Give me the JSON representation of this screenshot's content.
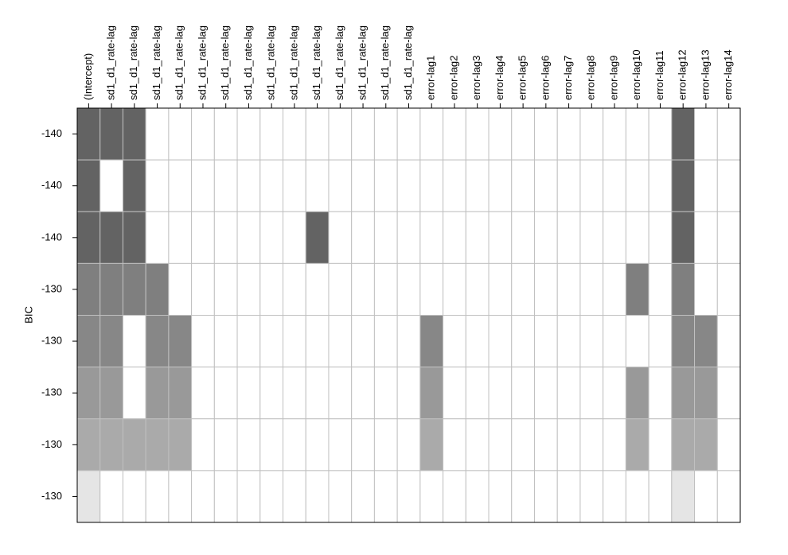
{
  "chart_data": {
    "type": "heatmap",
    "ylabel": "BIC",
    "columns": [
      "(Intercept)",
      "sd1_d1_rate-lag",
      "sd1_d1_rate-lag",
      "sd1_d1_rate-lag",
      "sd1_d1_rate-lag",
      "sd1_d1_rate-lag",
      "sd1_d1_rate-lag",
      "sd1_d1_rate-lag",
      "sd1_d1_rate-lag",
      "sd1_d1_rate-lag",
      "sd1_d1_rate-lag",
      "sd1_d1_rate-lag",
      "sd1_d1_rate-lag",
      "sd1_d1_rate-lag",
      "sd1_d1_rate-lag",
      "error-lag1",
      "error-lag2",
      "error-lag3",
      "error-lag4",
      "error-lag5",
      "error-lag6",
      "error-lag7",
      "error-lag8",
      "error-lag9",
      "error-lag10",
      "error-lag11",
      "error-lag12",
      "error-lag13",
      "error-lag14"
    ],
    "rows": [
      {
        "bic": -140,
        "color": "#636363",
        "included": [
          1,
          1,
          1,
          0,
          0,
          0,
          0,
          0,
          0,
          0,
          0,
          0,
          0,
          0,
          0,
          0,
          0,
          0,
          0,
          0,
          0,
          0,
          0,
          0,
          0,
          0,
          1,
          0,
          0
        ]
      },
      {
        "bic": -140,
        "color": "#636363",
        "included": [
          1,
          0,
          1,
          0,
          0,
          0,
          0,
          0,
          0,
          0,
          0,
          0,
          0,
          0,
          0,
          0,
          0,
          0,
          0,
          0,
          0,
          0,
          0,
          0,
          0,
          0,
          1,
          0,
          0
        ]
      },
      {
        "bic": -140,
        "color": "#636363",
        "included": [
          1,
          1,
          1,
          0,
          0,
          0,
          0,
          0,
          0,
          0,
          1,
          0,
          0,
          0,
          0,
          0,
          0,
          0,
          0,
          0,
          0,
          0,
          0,
          0,
          0,
          0,
          1,
          0,
          0
        ]
      },
      {
        "bic": -130,
        "color": "#7f7f7f",
        "included": [
          1,
          1,
          1,
          1,
          0,
          0,
          0,
          0,
          0,
          0,
          0,
          0,
          0,
          0,
          0,
          0,
          0,
          0,
          0,
          0,
          0,
          0,
          0,
          0,
          1,
          0,
          1,
          0,
          0
        ]
      },
      {
        "bic": -130,
        "color": "#878787",
        "included": [
          1,
          1,
          0,
          1,
          1,
          0,
          0,
          0,
          0,
          0,
          0,
          0,
          0,
          0,
          0,
          1,
          0,
          0,
          0,
          0,
          0,
          0,
          0,
          0,
          0,
          0,
          1,
          1,
          0
        ]
      },
      {
        "bic": -130,
        "color": "#999999",
        "included": [
          1,
          1,
          0,
          1,
          1,
          0,
          0,
          0,
          0,
          0,
          0,
          0,
          0,
          0,
          0,
          1,
          0,
          0,
          0,
          0,
          0,
          0,
          0,
          0,
          1,
          0,
          1,
          1,
          0
        ]
      },
      {
        "bic": -130,
        "color": "#aaaaaa",
        "included": [
          1,
          1,
          1,
          1,
          1,
          0,
          0,
          0,
          0,
          0,
          0,
          0,
          0,
          0,
          0,
          1,
          0,
          0,
          0,
          0,
          0,
          0,
          0,
          0,
          1,
          0,
          1,
          1,
          0
        ]
      },
      {
        "bic": -130,
        "color": "#e5e5e5",
        "included": [
          1,
          0,
          0,
          0,
          0,
          0,
          0,
          0,
          0,
          0,
          0,
          0,
          0,
          0,
          0,
          0,
          0,
          0,
          0,
          0,
          0,
          0,
          0,
          0,
          0,
          0,
          1,
          0,
          0
        ]
      }
    ]
  }
}
